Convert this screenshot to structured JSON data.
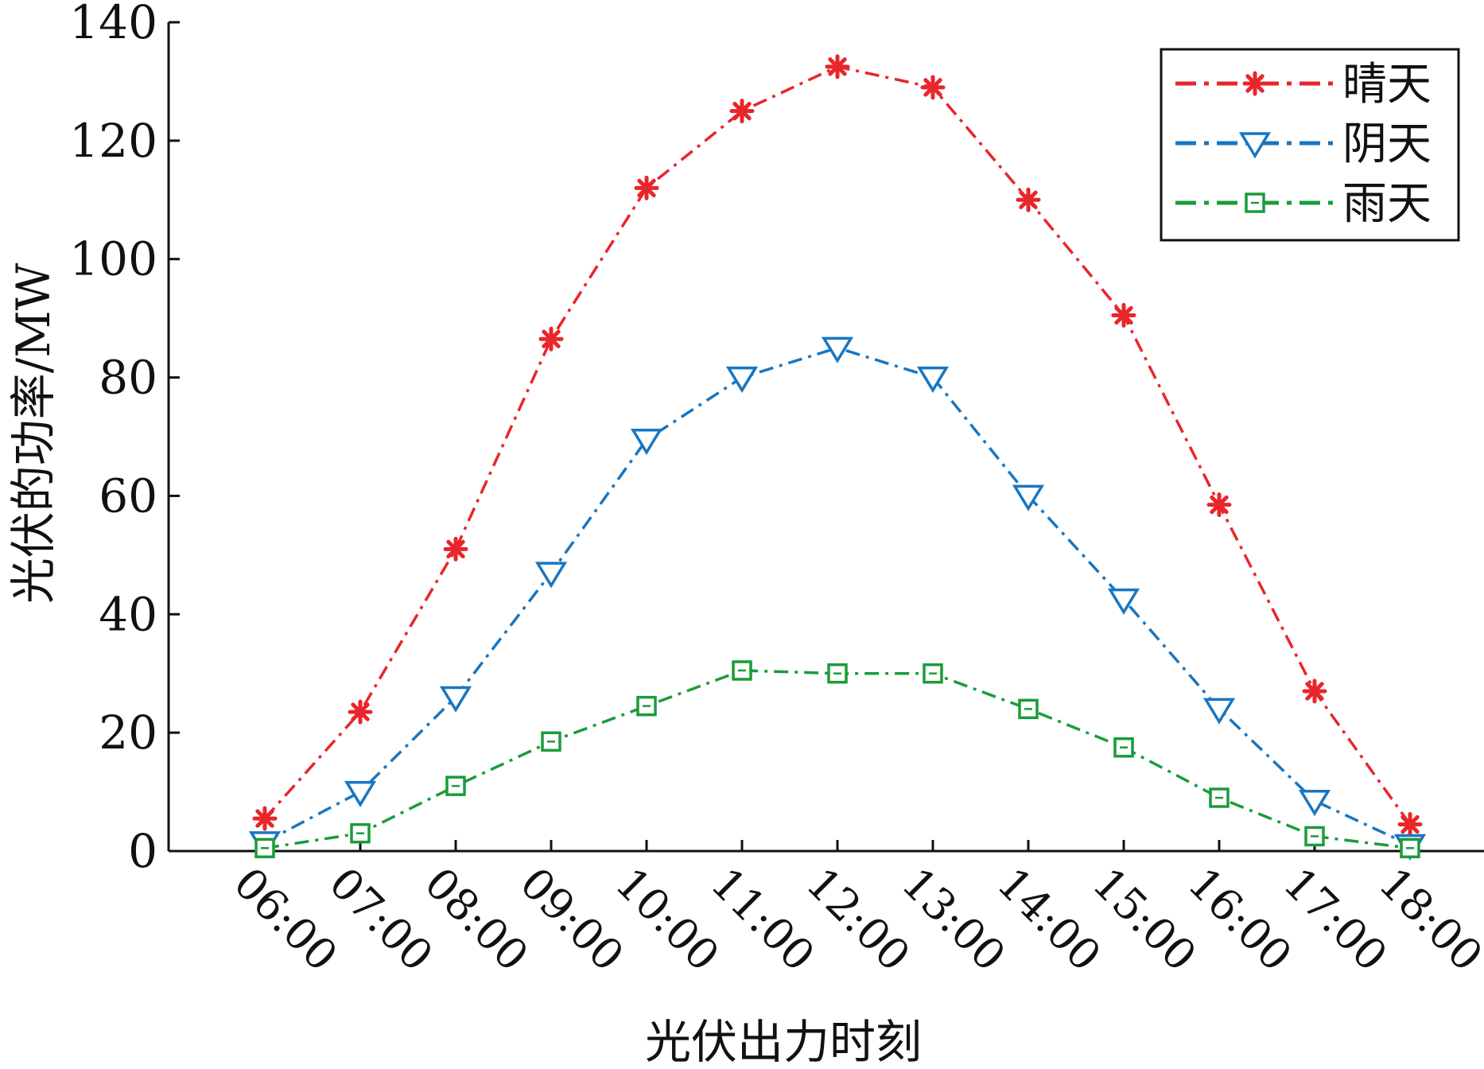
{
  "chart_data": {
    "type": "line",
    "xlabel": "光伏出力时刻",
    "ylabel": "光伏的功率/MW",
    "ylim": [
      0,
      140
    ],
    "yticks": [
      "0",
      "20",
      "40",
      "60",
      "80",
      "100",
      "120",
      "140"
    ],
    "categories": [
      "06:00",
      "07:00",
      "08:00",
      "09:00",
      "10:00",
      "11:00",
      "12:00",
      "13:00",
      "14:00",
      "15:00",
      "16:00",
      "17:00",
      "18:00"
    ],
    "legend_position": "top-right",
    "grid": false,
    "series": [
      {
        "name": "晴天",
        "color": "#e8262b",
        "marker": "asterisk",
        "values": [
          5.5,
          23.5,
          51,
          86.5,
          112,
          125,
          132.5,
          129,
          110,
          90.5,
          58.5,
          27,
          4.5
        ]
      },
      {
        "name": "阴天",
        "color": "#1976c0",
        "marker": "triangle-down",
        "values": [
          1.5,
          10,
          26,
          47,
          69.5,
          80,
          85,
          80,
          60,
          42.5,
          24,
          8.5,
          1
        ]
      },
      {
        "name": "雨天",
        "color": "#1a9c3a",
        "marker": "square",
        "values": [
          0.5,
          3,
          11,
          18.5,
          24.5,
          30.5,
          30,
          30,
          24,
          17.5,
          9,
          2.5,
          0.5
        ]
      }
    ]
  }
}
